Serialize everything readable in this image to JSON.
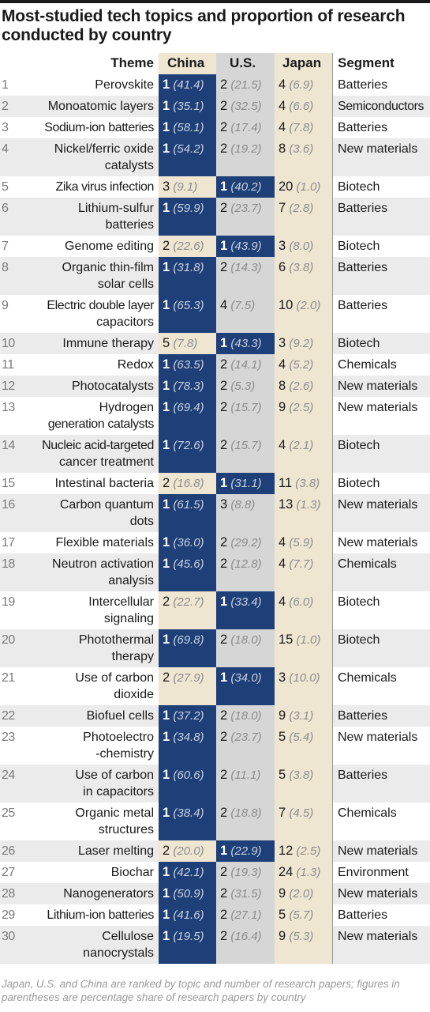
{
  "title": "Most-studied tech topics and proportion of research conducted by country",
  "footnote": "Japan, U.S. and China are ranked by topic and number of research papers; figures in parentheses are percentage share of research papers by country",
  "colors": {
    "china_band": "#efe6d2",
    "us_band": "#d6d6d6",
    "japan_band": "#efe6d2",
    "top_rank": "#1e3f78",
    "row_stripe": "#ebebeb"
  },
  "chart_data": {
    "type": "table",
    "columns": [
      "Theme",
      "China",
      "U.S.",
      "Japan",
      "Segment"
    ],
    "rows": [
      {
        "n": "1",
        "theme": [
          "Perovskite"
        ],
        "china": [
          "1",
          "(41.4)"
        ],
        "us": [
          "2",
          "(21.5)"
        ],
        "japan": [
          "4",
          "(6.9)"
        ],
        "segment": "Batteries"
      },
      {
        "n": "2",
        "theme": [
          "Monoatomic layers"
        ],
        "china": [
          "1",
          "(35.1)"
        ],
        "us": [
          "2",
          "(32.5)"
        ],
        "japan": [
          "4",
          "(6.6)"
        ],
        "segment": "Semiconductors"
      },
      {
        "n": "3",
        "theme": [
          "Sodium-ion batteries"
        ],
        "china": [
          "1",
          "(58.1)"
        ],
        "us": [
          "2",
          "(17.4)"
        ],
        "japan": [
          "4",
          "(7.8)"
        ],
        "segment": "Batteries"
      },
      {
        "n": "4",
        "theme": [
          "Nickel/ferric oxide",
          "catalysts"
        ],
        "china": [
          "1",
          "(54.2)"
        ],
        "us": [
          "2",
          "(19.2)"
        ],
        "japan": [
          "8",
          "(3.6)"
        ],
        "segment": "New materials"
      },
      {
        "n": "5",
        "theme": [
          "Zika virus infection"
        ],
        "china": [
          "3",
          "(9.1)"
        ],
        "us": [
          "1",
          "(40.2)"
        ],
        "japan": [
          "20",
          "(1.0)"
        ],
        "segment": "Biotech"
      },
      {
        "n": "6",
        "theme": [
          "Lithium-sulfur",
          "batteries"
        ],
        "china": [
          "1",
          "(59.9)"
        ],
        "us": [
          "2",
          "(23.7)"
        ],
        "japan": [
          "7",
          "(2.8)"
        ],
        "segment": "Batteries"
      },
      {
        "n": "7",
        "theme": [
          "Genome editing"
        ],
        "china": [
          "2",
          "(22.6)"
        ],
        "us": [
          "1",
          "(43.9)"
        ],
        "japan": [
          "3",
          "(8.0)"
        ],
        "segment": "Biotech"
      },
      {
        "n": "8",
        "theme": [
          "Organic thin-film",
          "solar cells"
        ],
        "china": [
          "1",
          "(31.8)"
        ],
        "us": [
          "2",
          "(14.3)"
        ],
        "japan": [
          "6",
          "(3.8)"
        ],
        "segment": "Batteries"
      },
      {
        "n": "9",
        "theme": [
          "Electric double layer",
          "capacitors"
        ],
        "china": [
          "1",
          "(65.3)"
        ],
        "us": [
          "4",
          "(7.5)"
        ],
        "japan": [
          "10",
          "(2.0)"
        ],
        "segment": "Batteries"
      },
      {
        "n": "10",
        "theme": [
          "Immune therapy"
        ],
        "china": [
          "5",
          "(7.8)"
        ],
        "us": [
          "1",
          "(43.3)"
        ],
        "japan": [
          "3",
          "(9.2)"
        ],
        "segment": "Biotech"
      },
      {
        "n": "11",
        "theme": [
          "Redox"
        ],
        "china": [
          "1",
          "(63.5)"
        ],
        "us": [
          "2",
          "(14.1)"
        ],
        "japan": [
          "4",
          "(5.2)"
        ],
        "segment": "Chemicals"
      },
      {
        "n": "12",
        "theme": [
          "Photocatalysts"
        ],
        "china": [
          "1",
          "(78.3)"
        ],
        "us": [
          "2",
          "(5.3)"
        ],
        "japan": [
          "8",
          "(2.6)"
        ],
        "segment": "New materials"
      },
      {
        "n": "13",
        "theme": [
          "Hydrogen",
          "generation catalysts"
        ],
        "china": [
          "1",
          "(69.4)"
        ],
        "us": [
          "2",
          "(15.7)"
        ],
        "japan": [
          "9",
          "(2.5)"
        ],
        "segment": "New materials"
      },
      {
        "n": "14",
        "theme": [
          "Nucleic acid-targeted",
          "cancer treatment"
        ],
        "china": [
          "1",
          "(72.6)"
        ],
        "us": [
          "2",
          "(15.7)"
        ],
        "japan": [
          "4",
          "(2.1)"
        ],
        "segment": "Biotech"
      },
      {
        "n": "15",
        "theme": [
          "Intestinal bacteria"
        ],
        "china": [
          "2",
          "(16.8)"
        ],
        "us": [
          "1",
          "(31.1)"
        ],
        "japan": [
          "11",
          "(3.8)"
        ],
        "segment": "Biotech"
      },
      {
        "n": "16",
        "theme": [
          "Carbon quantum",
          "dots"
        ],
        "china": [
          "1",
          "(61.5)"
        ],
        "us": [
          "3",
          "(8.8)"
        ],
        "japan": [
          "13",
          "(1.3)"
        ],
        "segment": "New materials"
      },
      {
        "n": "17",
        "theme": [
          "Flexible materials"
        ],
        "china": [
          "1",
          "(36.0)"
        ],
        "us": [
          "2",
          "(29.2)"
        ],
        "japan": [
          "4",
          "(5.9)"
        ],
        "segment": "New materials"
      },
      {
        "n": "18",
        "theme": [
          "Neutron activation",
          "analysis"
        ],
        "china": [
          "1",
          "(45.6)"
        ],
        "us": [
          "2",
          "(12.8)"
        ],
        "japan": [
          "4",
          "(7.7)"
        ],
        "segment": "Chemicals"
      },
      {
        "n": "19",
        "theme": [
          "Intercellular",
          "signaling"
        ],
        "china": [
          "2",
          "(22.7)"
        ],
        "us": [
          "1",
          "(33.4)"
        ],
        "japan": [
          "4",
          "(6.0)"
        ],
        "segment": "Biotech"
      },
      {
        "n": "20",
        "theme": [
          "Photothermal",
          "therapy"
        ],
        "china": [
          "1",
          "(69.8)"
        ],
        "us": [
          "2",
          "(18.0)"
        ],
        "japan": [
          "15",
          "(1.0)"
        ],
        "segment": "Biotech"
      },
      {
        "n": "21",
        "theme": [
          "Use of carbon",
          "dioxide"
        ],
        "china": [
          "2",
          "(27.9)"
        ],
        "us": [
          "1",
          "(34.0)"
        ],
        "japan": [
          "3",
          "(10.0)"
        ],
        "segment": "Chemicals"
      },
      {
        "n": "22",
        "theme": [
          "Biofuel cells"
        ],
        "china": [
          "1",
          "(37.2)"
        ],
        "us": [
          "2",
          "(18.0)"
        ],
        "japan": [
          "9",
          "(3.1)"
        ],
        "segment": "Batteries"
      },
      {
        "n": "23",
        "theme": [
          "Photoelectro",
          "-chemistry"
        ],
        "china": [
          "1",
          "(34.8)"
        ],
        "us": [
          "2",
          "(23.7)"
        ],
        "japan": [
          "5",
          "(5.4)"
        ],
        "segment": "New materials"
      },
      {
        "n": "24",
        "theme": [
          "Use of carbon",
          "in capacitors"
        ],
        "china": [
          "1",
          "(60.6)"
        ],
        "us": [
          "2",
          "(11.1)"
        ],
        "japan": [
          "5",
          "(3.8)"
        ],
        "segment": "Batteries"
      },
      {
        "n": "25",
        "theme": [
          "Organic metal",
          "structures"
        ],
        "china": [
          "1",
          "(38.4)"
        ],
        "us": [
          "2",
          "(18.8)"
        ],
        "japan": [
          "7",
          "(4.5)"
        ],
        "segment": "Chemicals"
      },
      {
        "n": "26",
        "theme": [
          "Laser melting"
        ],
        "china": [
          "2",
          "(20.0)"
        ],
        "us": [
          "1",
          "(22.9)"
        ],
        "japan": [
          "12",
          "(2.5)"
        ],
        "segment": "New materials"
      },
      {
        "n": "27",
        "theme": [
          "Biochar"
        ],
        "china": [
          "1",
          "(42.1)"
        ],
        "us": [
          "2",
          "(19.3)"
        ],
        "japan": [
          "24",
          "(1.3)"
        ],
        "segment": "Environment"
      },
      {
        "n": "28",
        "theme": [
          "Nanogenerators"
        ],
        "china": [
          "1",
          "(50.9)"
        ],
        "us": [
          "2",
          "(31.5)"
        ],
        "japan": [
          "9",
          "(2.0)"
        ],
        "segment": "New materials"
      },
      {
        "n": "29",
        "theme": [
          "Lithium-ion batteries"
        ],
        "china": [
          "1",
          "(41.6)"
        ],
        "us": [
          "2",
          "(27.1)"
        ],
        "japan": [
          "5",
          "(5.7)"
        ],
        "segment": "Batteries"
      },
      {
        "n": "30",
        "theme": [
          "Cellulose",
          "nanocrystals"
        ],
        "china": [
          "1",
          "(19.5)"
        ],
        "us": [
          "2",
          "(16.4)"
        ],
        "japan": [
          "9",
          "(5.3)"
        ],
        "segment": "New materials"
      }
    ]
  }
}
